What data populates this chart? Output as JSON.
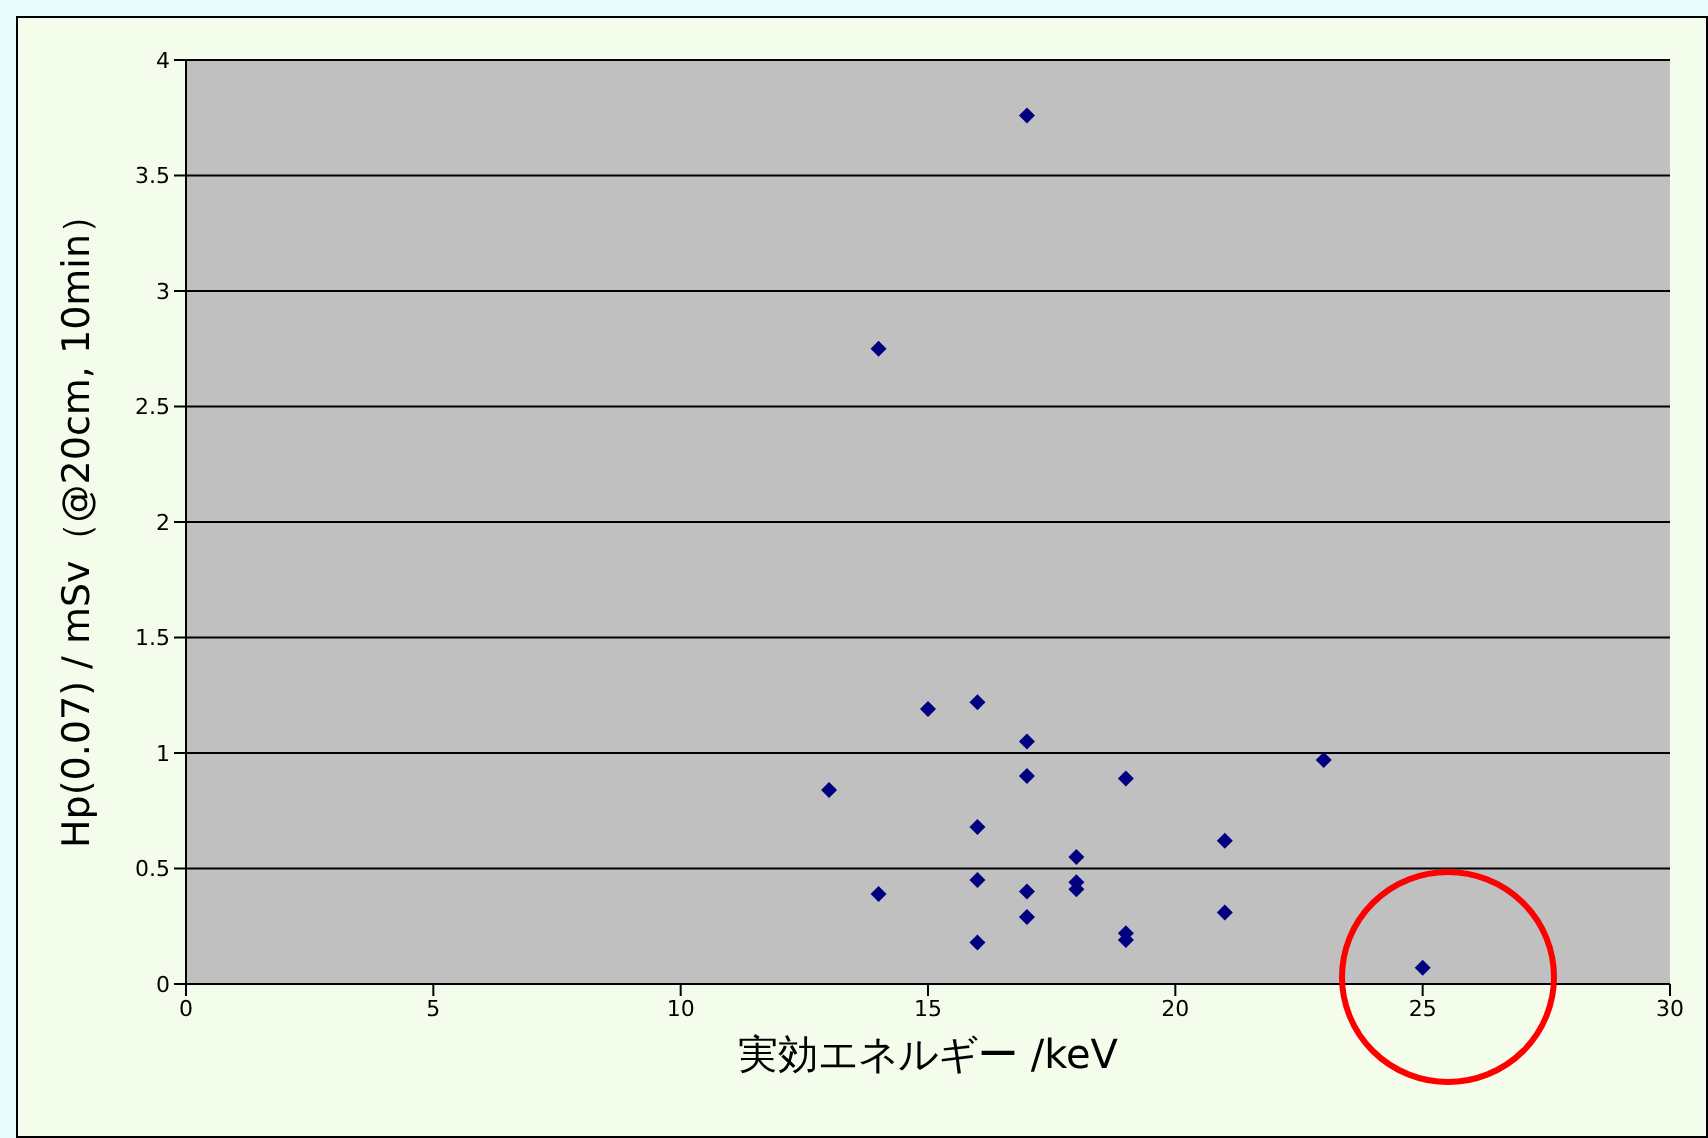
{
  "chart_data": {
    "type": "scatter",
    "xlabel": "実効エネルギー /keV",
    "ylabel": "Hp(0.07) / mSv（@20cm, 10min）",
    "x": [
      13,
      14,
      14,
      15,
      16,
      16,
      16,
      16,
      17,
      17,
      17,
      17,
      17,
      18,
      18,
      18,
      19,
      19,
      19,
      21,
      21,
      23,
      25
    ],
    "values": [
      0.84,
      2.75,
      0.39,
      1.19,
      1.22,
      0.68,
      0.45,
      0.18,
      3.76,
      1.05,
      0.9,
      0.4,
      0.29,
      0.55,
      0.44,
      0.41,
      0.89,
      0.22,
      0.19,
      0.62,
      0.31,
      0.97,
      0.07
    ],
    "color": "#000080",
    "marker": "diamond",
    "xlim": [
      0,
      30
    ],
    "xticks": [
      0,
      5,
      10,
      15,
      20,
      25,
      30
    ],
    "ylim": [
      0,
      4
    ],
    "yticks": [
      0,
      0.5,
      1,
      1.5,
      2,
      2.5,
      3,
      3.5,
      4
    ],
    "grid": "y",
    "legend": false
  }
}
